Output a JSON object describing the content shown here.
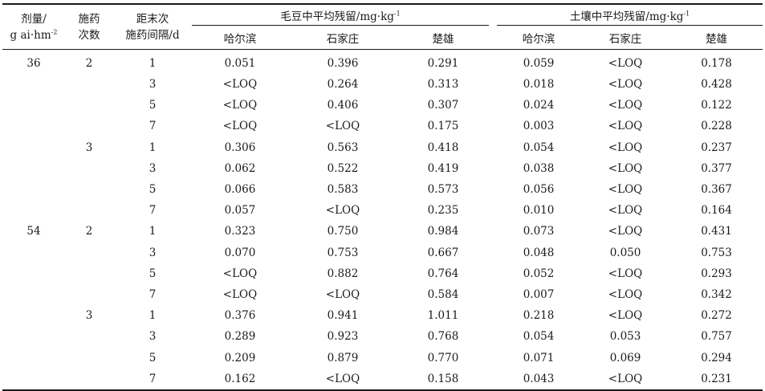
{
  "table": {
    "headers": {
      "dose": [
        "剂量/",
        "g ai·hm",
        "-2"
      ],
      "times": [
        "施药",
        "次数"
      ],
      "interval": [
        "距末次",
        "施药间隔/d"
      ],
      "group_bean": {
        "label": "毛豆中平均残留/mg·kg",
        "sup": "-1"
      },
      "group_soil": {
        "label": "土壤中平均残留/mg·kg",
        "sup": "-1"
      },
      "sites": [
        "哈尔滨",
        "石家庄",
        "楚雄",
        "哈尔滨",
        "石家庄",
        "楚雄"
      ]
    },
    "rows": [
      {
        "dose": "36",
        "times": "2",
        "interval": "1",
        "bean": [
          "0.051",
          "0.396",
          "0.291"
        ],
        "soil": [
          "0.059",
          "<LOQ",
          "0.178"
        ]
      },
      {
        "dose": "",
        "times": "",
        "interval": "3",
        "bean": [
          "<LOQ",
          "0.264",
          "0.313"
        ],
        "soil": [
          "0.018",
          "<LOQ",
          "0.428"
        ]
      },
      {
        "dose": "",
        "times": "",
        "interval": "5",
        "bean": [
          "<LOQ",
          "0.406",
          "0.307"
        ],
        "soil": [
          "0.024",
          "<LOQ",
          "0.122"
        ]
      },
      {
        "dose": "",
        "times": "",
        "interval": "7",
        "bean": [
          "<LOQ",
          "<LOQ",
          "0.175"
        ],
        "soil": [
          "0.003",
          "<LOQ",
          "0.228"
        ]
      },
      {
        "dose": "",
        "times": "3",
        "interval": "1",
        "bean": [
          "0.306",
          "0.563",
          "0.418"
        ],
        "soil": [
          "0.054",
          "<LOQ",
          "0.237"
        ]
      },
      {
        "dose": "",
        "times": "",
        "interval": "3",
        "bean": [
          "0.062",
          "0.522",
          "0.419"
        ],
        "soil": [
          "0.038",
          "<LOQ",
          "0.377"
        ]
      },
      {
        "dose": "",
        "times": "",
        "interval": "5",
        "bean": [
          "0.066",
          "0.583",
          "0.573"
        ],
        "soil": [
          "0.056",
          "<LOQ",
          "0.367"
        ]
      },
      {
        "dose": "",
        "times": "",
        "interval": "7",
        "bean": [
          "0.057",
          "<LOQ",
          "0.235"
        ],
        "soil": [
          "0.010",
          "<LOQ",
          "0.164"
        ]
      },
      {
        "dose": "54",
        "times": "2",
        "interval": "1",
        "bean": [
          "0.323",
          "0.750",
          "0.984"
        ],
        "soil": [
          "0.073",
          "<LOQ",
          "0.431"
        ]
      },
      {
        "dose": "",
        "times": "",
        "interval": "3",
        "bean": [
          "0.070",
          "0.753",
          "0.667"
        ],
        "soil": [
          "0.048",
          "0.050",
          "0.753"
        ]
      },
      {
        "dose": "",
        "times": "",
        "interval": "5",
        "bean": [
          "<LOQ",
          "0.882",
          "0.764"
        ],
        "soil": [
          "0.052",
          "<LOQ",
          "0.293"
        ]
      },
      {
        "dose": "",
        "times": "",
        "interval": "7",
        "bean": [
          "<LOQ",
          "<LOQ",
          "0.584"
        ],
        "soil": [
          "0.007",
          "<LOQ",
          "0.342"
        ]
      },
      {
        "dose": "",
        "times": "3",
        "interval": "1",
        "bean": [
          "0.376",
          "0.941",
          "1.011"
        ],
        "soil": [
          "0.218",
          "<LOQ",
          "0.272"
        ]
      },
      {
        "dose": "",
        "times": "",
        "interval": "3",
        "bean": [
          "0.289",
          "0.923",
          "0.768"
        ],
        "soil": [
          "0.054",
          "0.053",
          "0.757"
        ]
      },
      {
        "dose": "",
        "times": "",
        "interval": "5",
        "bean": [
          "0.209",
          "0.879",
          "0.770"
        ],
        "soil": [
          "0.071",
          "0.069",
          "0.294"
        ]
      },
      {
        "dose": "",
        "times": "",
        "interval": "7",
        "bean": [
          "0.162",
          "<LOQ",
          "0.158"
        ],
        "soil": [
          "0.043",
          "<LOQ",
          "0.231"
        ]
      }
    ]
  }
}
